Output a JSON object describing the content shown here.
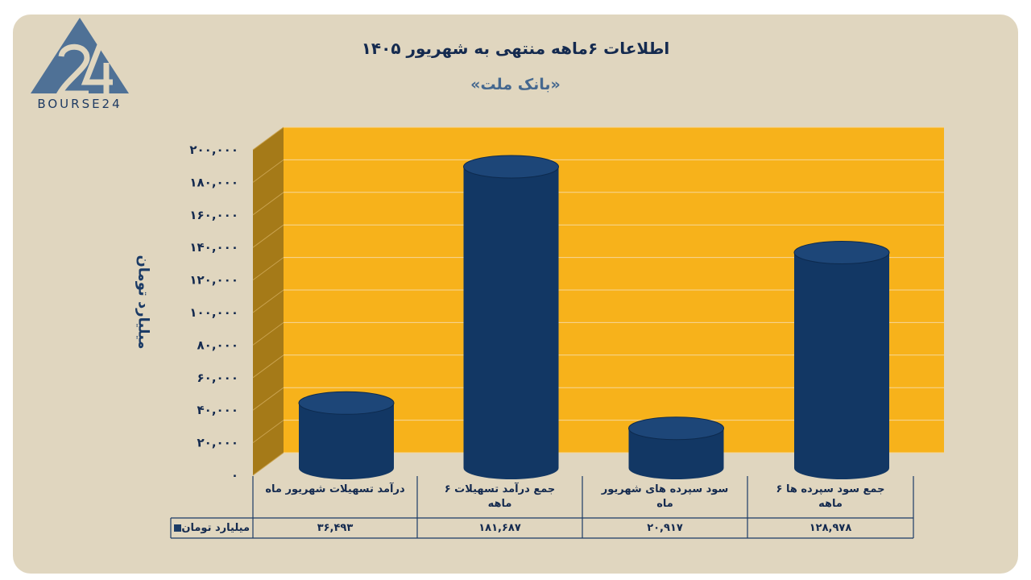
{
  "brand": {
    "logo_text": "BOURSE24"
  },
  "chart_data": {
    "type": "bar",
    "title": "اطلاعات ۶ماهه منتهی به شهریور ۱۴۰۵",
    "subtitle": "«بانک ملت»",
    "ylabel": "میلیارد تومان",
    "ylim": [
      0,
      200000
    ],
    "ytick_labels": [
      "۰",
      "۲۰,۰۰۰",
      "۴۰,۰۰۰",
      "۶۰,۰۰۰",
      "۸۰,۰۰۰",
      "۱۰۰,۰۰۰",
      "۱۲۰,۰۰۰",
      "۱۴۰,۰۰۰",
      "۱۶۰,۰۰۰",
      "۱۸۰,۰۰۰",
      "۲۰۰,۰۰۰"
    ],
    "yticks": [
      0,
      20000,
      40000,
      60000,
      80000,
      100000,
      120000,
      140000,
      160000,
      180000,
      200000
    ],
    "categories": [
      [
        "درآمد تسهیلات شهریور ماه"
      ],
      [
        "جمع درآمد تسهیلات ۶",
        "ماهه"
      ],
      [
        "سود سپرده های شهریور",
        "ماه"
      ],
      [
        "جمع سود سپرده ها ۶",
        "ماهه"
      ]
    ],
    "series": [
      {
        "name": "میلیارد تومان",
        "values": [
          36493,
          181687,
          20917,
          128978
        ],
        "value_labels": [
          "۳۶,۴۹۳",
          "۱۸۱,۶۸۷",
          "۲۰,۹۱۷",
          "۱۲۸,۹۷۸"
        ]
      }
    ],
    "grid": true,
    "data_table": true,
    "colors": {
      "plot_back": "#f7b21b",
      "plot_side": "#a57a18",
      "bar": "#123764",
      "bar_top": "#1d4678"
    }
  }
}
